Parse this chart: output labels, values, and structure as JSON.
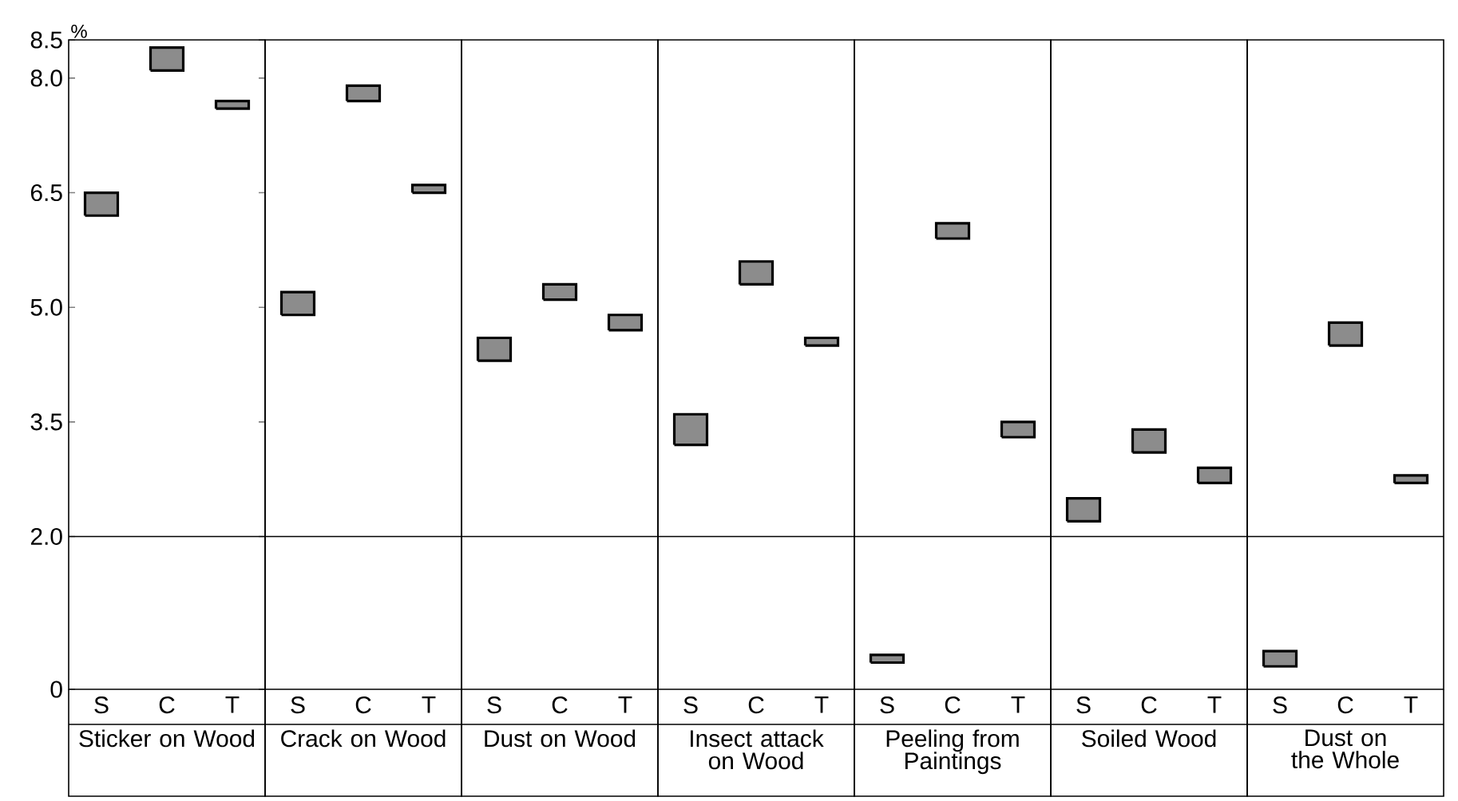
{
  "chart_data": [
    {
      "type": "bar",
      "ylabel": "%",
      "xlabel": "Sticker on Wood",
      "categories": [
        "S",
        "C",
        "T"
      ],
      "base": [
        6.2,
        8.1,
        7.6
      ],
      "values": [
        0.3,
        0.3,
        0.1
      ],
      "color": "#000000",
      "ylim": [
        0,
        8.5
      ],
      "yticks": [
        0,
        {
          "value": 2,
          "label": "2.0"
        },
        {
          "value": 3.5,
          "label": "3.5"
        },
        {
          "value": 5,
          "label": "5.0"
        },
        {
          "value": 6.5,
          "label": "6.5"
        },
        {
          "value": 8,
          "label": "8.0"
        },
        {
          "value": 8.5,
          "label": "8.5"
        }
      ],
      "ref_lines": [
        {
          "axis": "y",
          "value": 2
        }
      ]
    },
    {
      "type": "bar",
      "xlabel": "Crack on Wood",
      "categories": [
        "S",
        "C",
        "T"
      ],
      "base": [
        4.9,
        7.7,
        6.5
      ],
      "values": [
        0.3,
        0.2,
        0.1
      ],
      "color": "#000000",
      "ylim": [
        0,
        8.5
      ],
      "ref_lines": [
        {
          "axis": "y",
          "value": 2
        }
      ],
      "tick_labels": "x"
    },
    {
      "type": "bar",
      "xlabel": "Dust on Wood",
      "categories": [
        "S",
        "C",
        "T"
      ],
      "base": [
        4.3,
        5.1,
        4.7
      ],
      "values": [
        0.3,
        0.2,
        0.2
      ],
      "color": "#000000",
      "ylim": [
        0,
        8.5
      ],
      "ref_lines": [
        {
          "axis": "y",
          "value": 2
        }
      ],
      "tick_labels": "x"
    },
    {
      "type": "bar",
      "xlabel": "Insect attack on Wood",
      "categories": [
        "S",
        "C",
        "T"
      ],
      "base": [
        3.2,
        5.3,
        4.5
      ],
      "values": [
        0.4,
        0.3,
        0.1
      ],
      "color": "#000000",
      "ylim": [
        0,
        8.5
      ],
      "ref_lines": [
        {
          "axis": "y",
          "value": 2
        }
      ],
      "tick_labels": "x"
    },
    {
      "type": "bar",
      "xlabel": "Peeling from Paintings",
      "categories": [
        "S",
        "C",
        "T"
      ],
      "base": [
        0.35,
        5.9,
        3.3
      ],
      "values": [
        0.1,
        0.2,
        0.2
      ],
      "color": "#000000",
      "ylim": [
        0,
        8.5
      ],
      "ref_lines": [
        {
          "axis": "y",
          "value": 2
        }
      ],
      "tick_labels": "x"
    },
    {
      "type": "bar",
      "xlabel": "Soiled Wood",
      "categories": [
        "S",
        "C",
        "T"
      ],
      "base": [
        2.2,
        3.1,
        2.7
      ],
      "values": [
        0.3,
        0.3,
        0.2
      ],
      "color": "#000000",
      "ylim": [
        0,
        8.5
      ],
      "ref_lines": [
        {
          "axis": "y",
          "value": 2
        }
      ],
      "tick_labels": "x"
    },
    {
      "type": "bar",
      "xlabel": "Dust on the Whole",
      "categories": [
        "S",
        "C",
        "T"
      ],
      "base": [
        0.3,
        4.5,
        2.7
      ],
      "values": [
        0.2,
        0.3,
        0.1
      ],
      "color": "#000000",
      "ylim": [
        0,
        8.5
      ],
      "ref_lines": [
        {
          "axis": "y",
          "value": 2
        }
      ],
      "tick_labels": "x"
    }
  ]
}
